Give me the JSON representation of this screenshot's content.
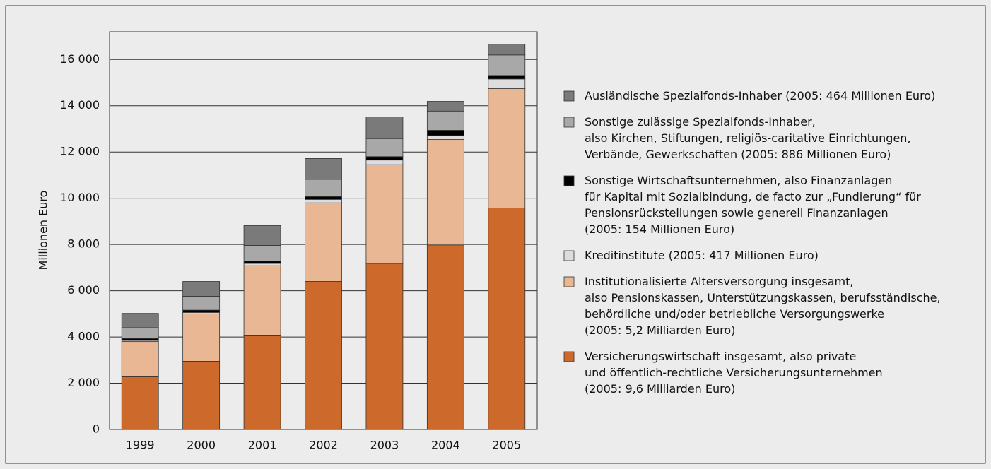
{
  "chart_data": {
    "type": "stacked_bar",
    "ylabel": "Millionen Euro",
    "categories": [
      "1999",
      "2000",
      "2001",
      "2002",
      "2003",
      "2004",
      "2005"
    ],
    "ylim": [
      0,
      17200
    ],
    "yticks": [
      0,
      {
        "value": 2000,
        "label": "2 000"
      },
      {
        "value": 4000,
        "label": "4 000"
      },
      {
        "value": 6000,
        "label": "6 000"
      },
      {
        "value": 8000,
        "label": "8 000"
      },
      {
        "value": 10000,
        "label": "10 000"
      },
      {
        "value": 12000,
        "label": "12 000"
      },
      {
        "value": 14000,
        "label": "14 000"
      },
      {
        "value": 16000,
        "label": "16 000"
      }
    ],
    "grid": true,
    "legend": "right",
    "series": [
      {
        "name": "Versicherungswirtschaft insgesamt, also private\nund öffentlich-rechtliche Versicherungsunternehmen\n(2005: 9,6 Milliarden Euro)",
        "color": "#cd6a2b",
        "values": [
          2280,
          2950,
          4080,
          6400,
          7180,
          7980,
          9580
        ]
      },
      {
        "name": "Institutionalisierte Altersversorgung insgesamt,\nalso Pensionskassen, Unterstützungskassen, berufsständische,\nbehördliche und/oder betriebliche Versorgungswerke\n(2005: 5,2 Milliarden Euro)",
        "color": "#e9b794",
        "values": [
          1520,
          2050,
          3000,
          3400,
          4270,
          4560,
          5160
        ]
      },
      {
        "name": "Kreditinstitute (2005: 417 Millionen Euro)",
        "color": "#dddddd",
        "values": [
          50,
          60,
          100,
          150,
          200,
          170,
          417
        ]
      },
      {
        "name": "Sonstige Wirtschaftsunternehmen, also Finanzanlagen\nfür Kapital mit Sozialbindung, de facto zur „Fundierung“ für\nPensionsrückstellungen sowie generell Finanzanlagen\n(2005: 154 Millionen Euro)",
        "color": "#000000",
        "values": [
          80,
          100,
          100,
          120,
          150,
          230,
          154
        ]
      },
      {
        "name": "Sonstige zulässige Spezialfonds-Inhaber,\nalso Kirchen, Stiftungen, religiös-caritative Einrichtungen,\nVerbände, Gewerkschaften (2005: 886 Millionen Euro)",
        "color": "#a8a8a8",
        "values": [
          470,
          600,
          680,
          750,
          780,
          830,
          886
        ]
      },
      {
        "name": "Ausländische Spezialfonds-Inhaber (2005: 464 Millionen Euro)",
        "color": "#7a7a7a",
        "values": [
          620,
          640,
          860,
          900,
          940,
          420,
          464
        ]
      }
    ]
  }
}
